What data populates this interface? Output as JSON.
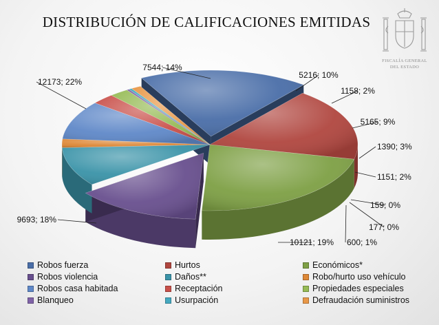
{
  "chart_data": {
    "type": "pie",
    "title": "DISTRIBUCIÓN DE CALIFICACIONES EMITIDAS",
    "legend_position": "bottom",
    "slices": [
      {
        "name": "Robos fuerza",
        "value": 10121,
        "percent": "19%",
        "label": "10121; 19%",
        "color": "#4a6ea8"
      },
      {
        "name": "Hurtos",
        "value": 9693,
        "percent": "18%",
        "label": "9693; 18%",
        "color": "#b0463f"
      },
      {
        "name": "Económicos*",
        "value": 12173,
        "percent": "22%",
        "label": "12173; 22%",
        "color": "#7ea045"
      },
      {
        "name": "Robos violencia",
        "value": 7544,
        "percent": "14%",
        "label": "7544; 14%",
        "color": "#684f8e"
      },
      {
        "name": "Daños**",
        "value": 5216,
        "percent": "10%",
        "label": "5216; 10%",
        "color": "#3a93a8"
      },
      {
        "name": "Robo/hurto uso vehículo",
        "value": 1158,
        "percent": "2%",
        "label": "1158; 2%",
        "color": "#de8837"
      },
      {
        "name": "Robos casa habitada",
        "value": 5165,
        "percent": "9%",
        "label": "5165; 9%",
        "color": "#5f88c8"
      },
      {
        "name": "Receptación",
        "value": 1390,
        "percent": "3%",
        "label": "1390; 3%",
        "color": "#c9504a"
      },
      {
        "name": "Propiedades especiales",
        "value": 1151,
        "percent": "2%",
        "label": "1151; 2%",
        "color": "#96bb55"
      },
      {
        "name": "Blanqueo",
        "value": 159,
        "percent": "0%",
        "label": "159; 0%",
        "color": "#8063a8"
      },
      {
        "name": "Usurpación",
        "value": 177,
        "percent": "0%",
        "label": "177; 0%",
        "color": "#45a9c0"
      },
      {
        "name": "Defraudación suministros",
        "value": 600,
        "percent": "1%",
        "label": "600; 1%",
        "color": "#e89848"
      }
    ]
  },
  "logo": {
    "name": "coat-of-arms-icon",
    "text_line1": "FISCALÍA GENERAL",
    "text_line2": "DEL ESTADO"
  }
}
